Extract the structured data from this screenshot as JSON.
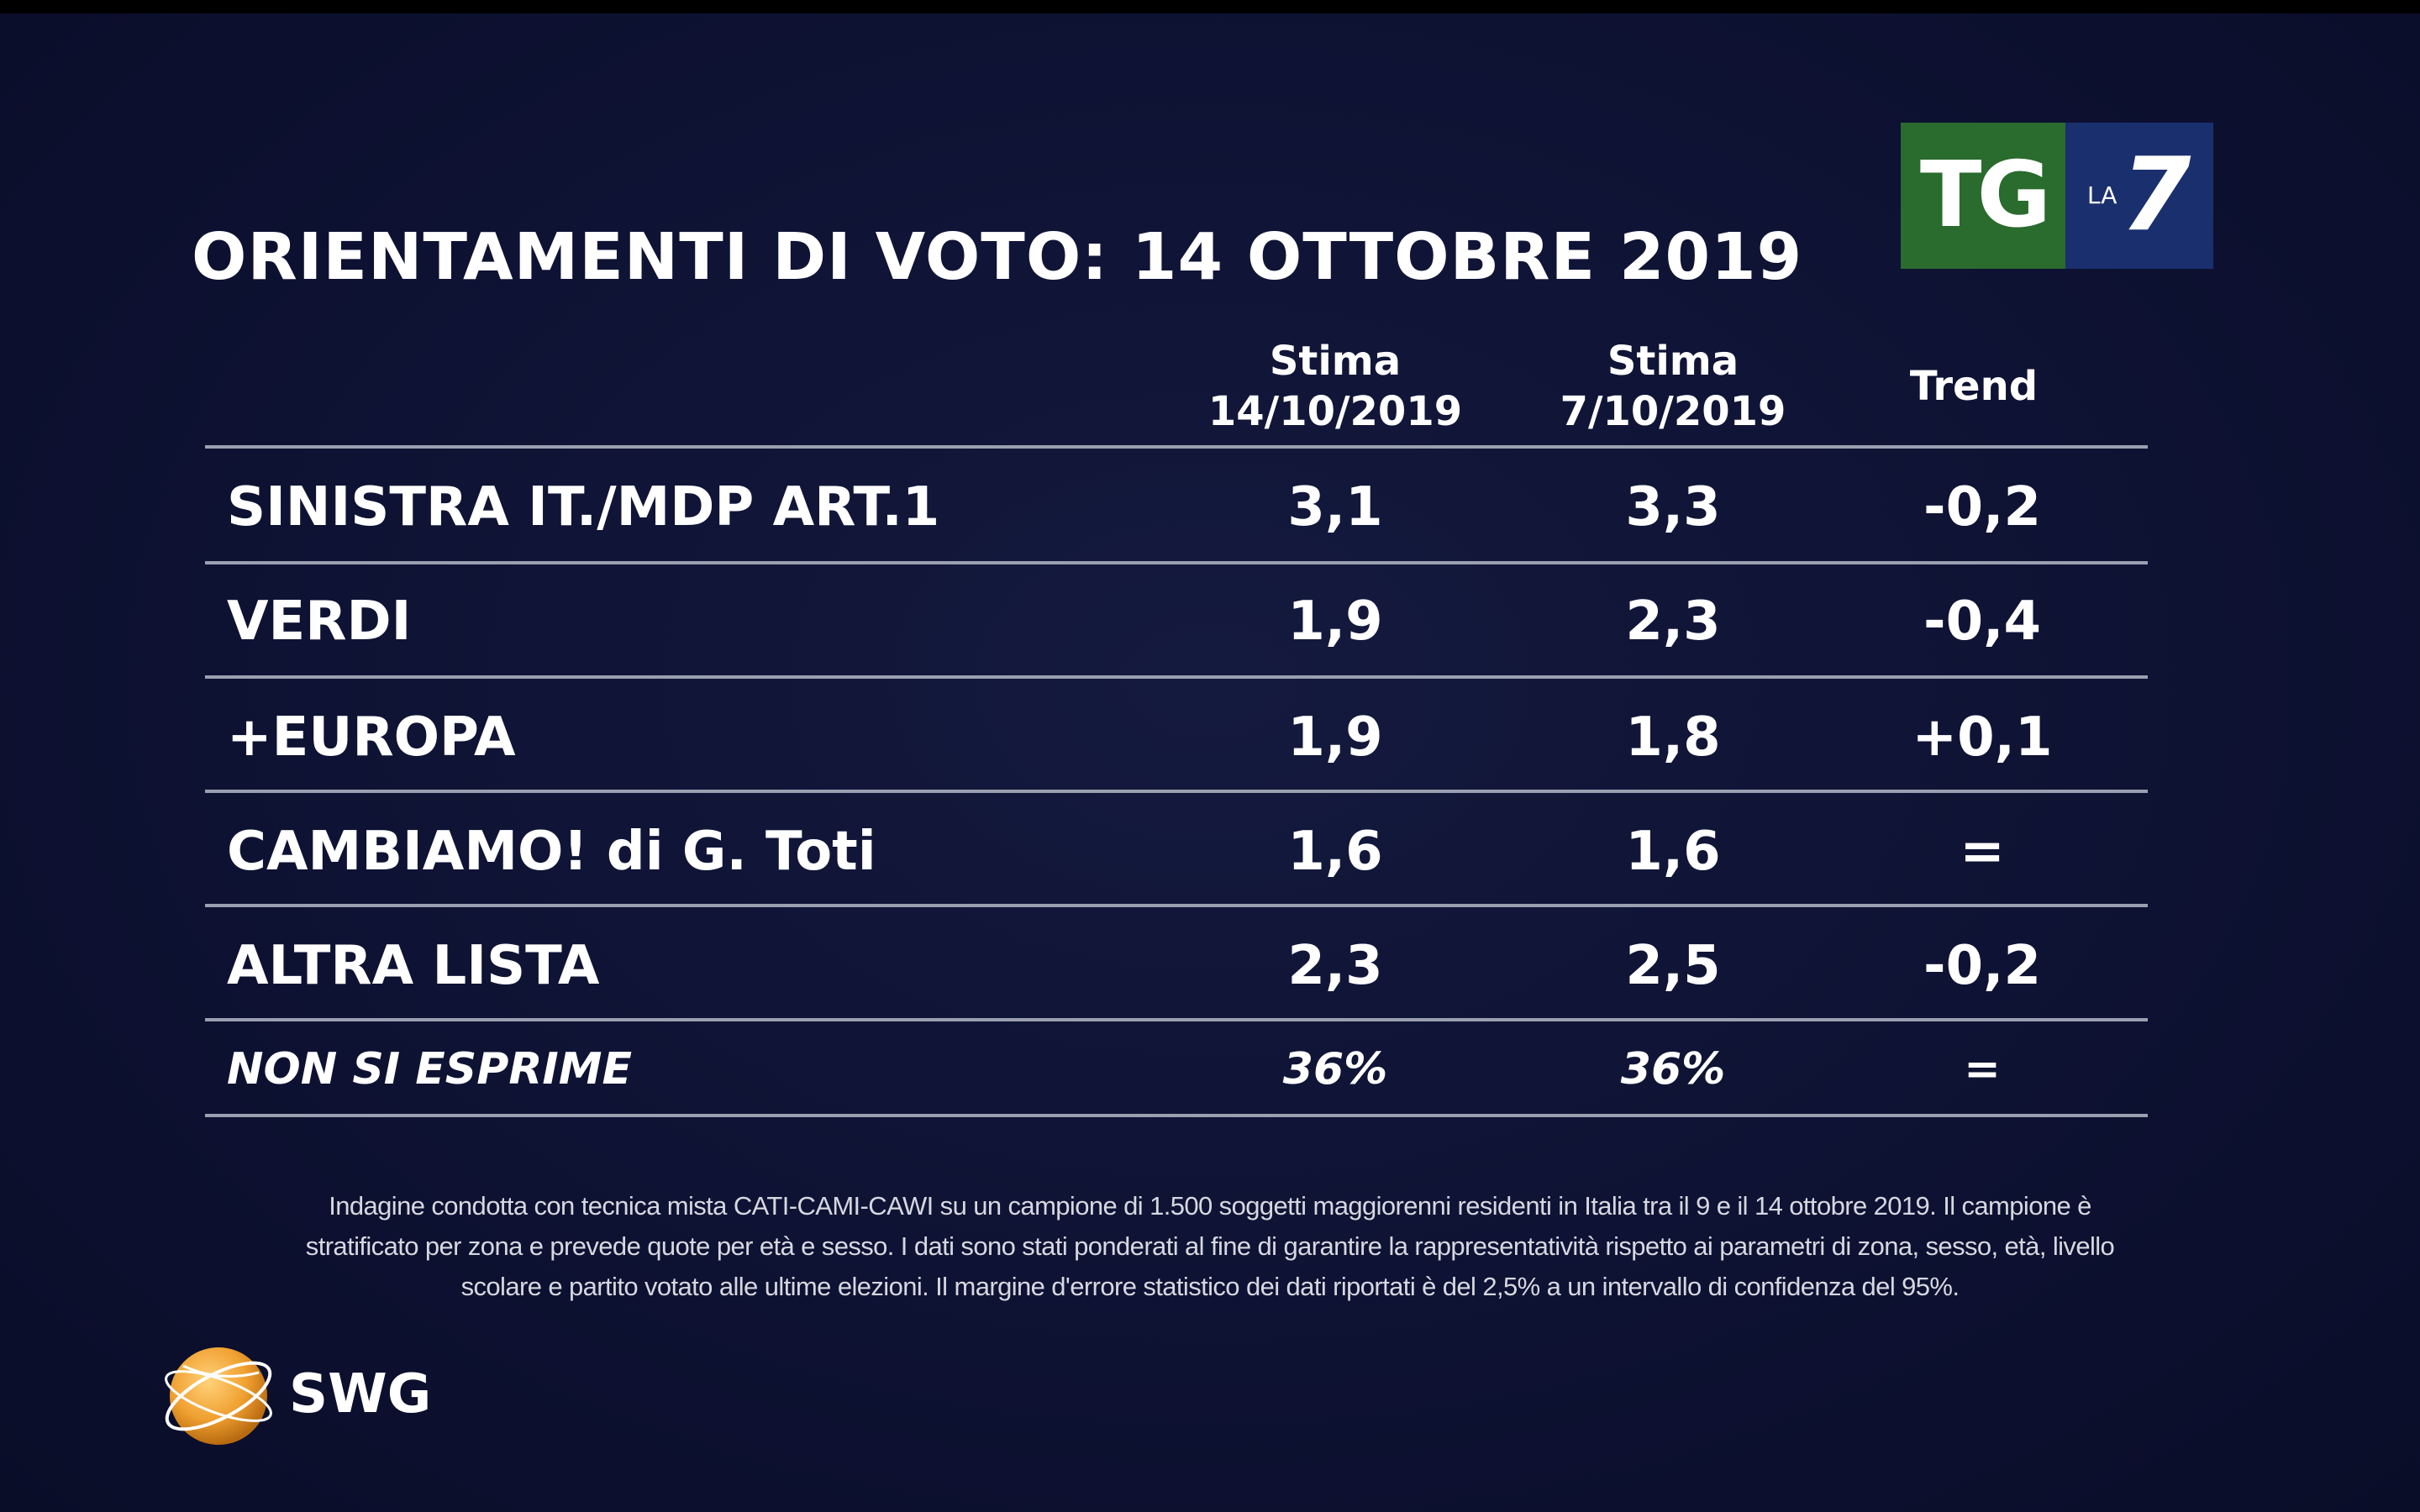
{
  "title": "ORIENTAMENTI DI VOTO: 14 OTTOBRE 2019",
  "logo": {
    "tg": "TG",
    "la": "LA",
    "seven": "7",
    "green": "#2a6b2e",
    "blue": "#1a2f6e"
  },
  "chart_data": {
    "type": "table",
    "columns": [
      {
        "line1": "Stima",
        "line2": "14/10/2019"
      },
      {
        "line1": "Stima",
        "line2": "7/10/2019"
      },
      {
        "line1": "Trend",
        "line2": ""
      }
    ],
    "rows": [
      {
        "label": "SINISTRA IT./MDP ART.1",
        "v1": "3,1",
        "v2": "3,3",
        "trend": "-0,2"
      },
      {
        "label": "VERDI",
        "v1": "1,9",
        "v2": "2,3",
        "trend": "-0,4"
      },
      {
        "label": "+EUROPA",
        "v1": "1,9",
        "v2": "1,8",
        "trend": "+0,1"
      },
      {
        "label": "CAMBIAMO! di G. Toti",
        "v1": "1,6",
        "v2": "1,6",
        "trend": "="
      },
      {
        "label": "ALTRA LISTA",
        "v1": "2,3",
        "v2": "2,5",
        "trend": "-0,2"
      },
      {
        "label": "NON SI ESPRIME",
        "v1": "36%",
        "v2": "36%",
        "trend": "="
      }
    ]
  },
  "footnote": {
    "line1": "Indagine condotta con tecnica mista CATI-CAMI-CAWI su un campione di 1.500 soggetti maggiorenni residenti in Italia tra il 9 e il 14 ottobre 2019. Il campione è",
    "line2": "stratificato per zona e prevede quote per età e sesso. I dati sono stati ponderati al fine di garantire la rappresentatività rispetto ai parametri di zona, sesso, età, livello",
    "line3": "scolare e partito votato alle ultime elezioni. Il margine d'errore statistico dei dati riportati è del 2,5% a un intervallo di confidenza del 95%."
  },
  "swg": {
    "name": "SWG",
    "orange": "#f0a030"
  }
}
